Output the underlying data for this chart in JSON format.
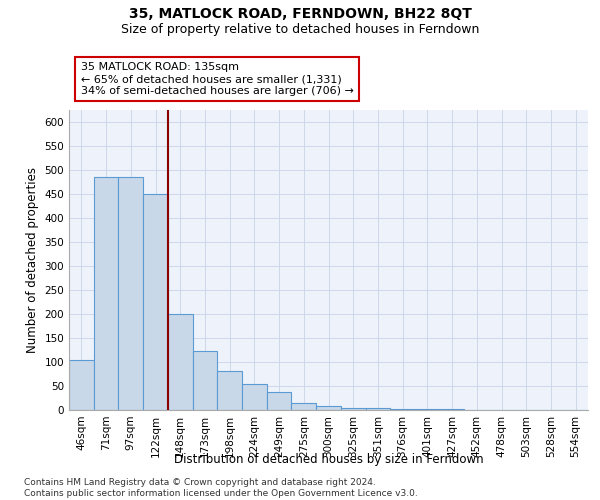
{
  "title": "35, MATLOCK ROAD, FERNDOWN, BH22 8QT",
  "subtitle": "Size of property relative to detached houses in Ferndown",
  "xlabel": "Distribution of detached houses by size in Ferndown",
  "ylabel": "Number of detached properties",
  "categories": [
    "46sqm",
    "71sqm",
    "97sqm",
    "122sqm",
    "148sqm",
    "173sqm",
    "198sqm",
    "224sqm",
    "249sqm",
    "275sqm",
    "300sqm",
    "325sqm",
    "351sqm",
    "376sqm",
    "401sqm",
    "427sqm",
    "452sqm",
    "478sqm",
    "503sqm",
    "528sqm",
    "554sqm"
  ],
  "values": [
    105,
    485,
    485,
    450,
    200,
    122,
    82,
    55,
    38,
    15,
    8,
    5,
    4,
    2,
    2,
    2,
    1,
    1,
    1,
    0,
    0
  ],
  "bar_color": "#c8d8e8",
  "bar_edge_color": "#5b9bd5",
  "bar_edge_width": 0.8,
  "vline_x": 3.5,
  "vline_color": "#8b0000",
  "annotation_line1": "35 MATLOCK ROAD: 135sqm",
  "annotation_line2": "← 65% of detached houses are smaller (1,331)",
  "annotation_line3": "34% of semi-detached houses are larger (706) →",
  "annotation_box_color": "#ffffff",
  "annotation_box_edge_color": "#cc0000",
  "ylim": [
    0,
    625
  ],
  "yticks": [
    0,
    50,
    100,
    150,
    200,
    250,
    300,
    350,
    400,
    450,
    500,
    550,
    600
  ],
  "grid_color": "#c8d4e8",
  "background_color": "#eef2fa",
  "footer": "Contains HM Land Registry data © Crown copyright and database right 2024.\nContains public sector information licensed under the Open Government Licence v3.0.",
  "title_fontsize": 10,
  "subtitle_fontsize": 9,
  "xlabel_fontsize": 8.5,
  "ylabel_fontsize": 8.5,
  "tick_fontsize": 7.5,
  "footer_fontsize": 6.5,
  "annotation_fontsize": 8
}
